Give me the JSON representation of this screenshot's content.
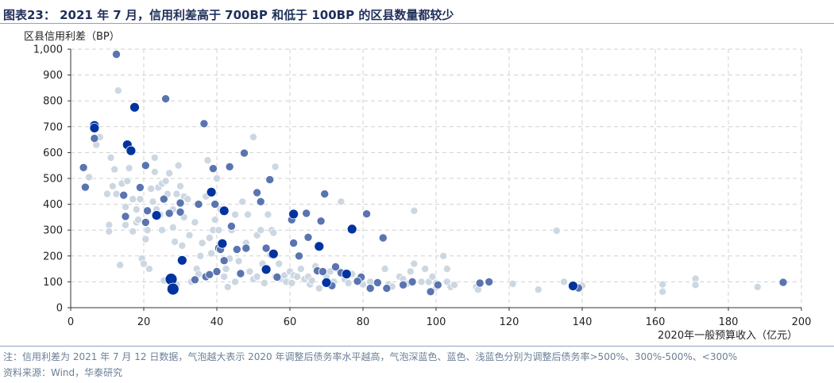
{
  "header": {
    "title": "图表23： 2021 年 7 月，信用利差高于 700BP 和低于 100BP 的区县数量都较少"
  },
  "footer": {
    "note": "注：信用利差为 2021 年 7 月 12 日数据，气泡越大表示 2020 年调整后债务率水平越高，气泡深蓝色、蓝色、浅蓝色分别为调整后债务率>500%、300%-500%、<300%",
    "source": "资料来源：Wind，华泰研究"
  },
  "chart_data": {
    "type": "scatter",
    "title": "",
    "xlabel": "2020年一般预算收入（亿元）",
    "ylabel": "区县信用利差（BP）",
    "xlim": [
      0,
      200
    ],
    "ylim": [
      0,
      1000
    ],
    "x_ticks": [
      "0",
      "20",
      "40",
      "60",
      "80",
      "100",
      "120",
      "140",
      "160",
      "180",
      "200"
    ],
    "y_ticks": [
      "0",
      "100",
      "200",
      "300",
      "400",
      "500",
      "600",
      "700",
      "800",
      "900",
      "1,000"
    ],
    "grid": "dashed",
    "colors": {
      "dark": "#0033a0",
      "medium": "#5a74b0",
      "light": "#c9d5e0"
    },
    "series": [
      {
        "category": "dark",
        "points": [
          [
            6.5,
            705
          ],
          [
            6.5,
            695
          ],
          [
            15.5,
            630
          ],
          [
            16.5,
            607
          ],
          [
            17.5,
            775
          ],
          [
            23.5,
            357
          ],
          [
            27.5,
            110
          ],
          [
            28,
            72
          ],
          [
            30.5,
            183
          ],
          [
            38.5,
            447
          ],
          [
            41.5,
            248
          ],
          [
            42,
            375
          ],
          [
            53.5,
            148
          ],
          [
            55.5,
            208
          ],
          [
            61,
            362
          ],
          [
            68,
            237
          ],
          [
            70,
            97
          ],
          [
            75.5,
            130
          ],
          [
            77,
            304
          ],
          [
            137.5,
            84
          ]
        ]
      },
      {
        "category": "medium",
        "points": [
          [
            12.5,
            980
          ],
          [
            3.5,
            542
          ],
          [
            4,
            466
          ],
          [
            6.5,
            655
          ],
          [
            14.5,
            435
          ],
          [
            15,
            353
          ],
          [
            19,
            465
          ],
          [
            20.5,
            330
          ],
          [
            20.5,
            550
          ],
          [
            21,
            375
          ],
          [
            26,
            808
          ],
          [
            27,
            365
          ],
          [
            30,
            405
          ],
          [
            30,
            370
          ],
          [
            34,
            108
          ],
          [
            35,
            400
          ],
          [
            36.5,
            712
          ],
          [
            37,
            120
          ],
          [
            38,
            128
          ],
          [
            39,
            538
          ],
          [
            39.5,
            400
          ],
          [
            40,
            140
          ],
          [
            40.5,
            230
          ],
          [
            41,
            225
          ],
          [
            42,
            182
          ],
          [
            43.5,
            545
          ],
          [
            44,
            315
          ],
          [
            45.5,
            225
          ],
          [
            46.5,
            132
          ],
          [
            47.5,
            598
          ],
          [
            48,
            230
          ],
          [
            51,
            445
          ],
          [
            52,
            410
          ],
          [
            53.5,
            230
          ],
          [
            54.5,
            495
          ],
          [
            55,
            205
          ],
          [
            56.5,
            118
          ],
          [
            60.5,
            340
          ],
          [
            61,
            250
          ],
          [
            62.5,
            200
          ],
          [
            64.5,
            365
          ],
          [
            65,
            272
          ],
          [
            67.5,
            143
          ],
          [
            68.5,
            335
          ],
          [
            69,
            140
          ],
          [
            69.5,
            440
          ],
          [
            71.5,
            85
          ],
          [
            72.5,
            158
          ],
          [
            74,
            135
          ],
          [
            79,
            108
          ],
          [
            79.5,
            118
          ],
          [
            81,
            363
          ],
          [
            82,
            75
          ],
          [
            85.5,
            270
          ],
          [
            86.5,
            75
          ],
          [
            91,
            88
          ],
          [
            93.5,
            100
          ],
          [
            98.5,
            62
          ],
          [
            100.5,
            88
          ],
          [
            112,
            95
          ],
          [
            114.5,
            100
          ],
          [
            139,
            76
          ],
          [
            195,
            98
          ],
          [
            84,
            97
          ],
          [
            78.5,
            102
          ],
          [
            25.5,
            420
          ]
        ]
      },
      {
        "category": "light",
        "points": [
          [
            5,
            505
          ],
          [
            7,
            630
          ],
          [
            8,
            660
          ],
          [
            10,
            440
          ],
          [
            10.5,
            320
          ],
          [
            10.5,
            295
          ],
          [
            11,
            580
          ],
          [
            11.5,
            470
          ],
          [
            12,
            535
          ],
          [
            12.5,
            440
          ],
          [
            13,
            840
          ],
          [
            13.5,
            165
          ],
          [
            14,
            480
          ],
          [
            14.5,
            430
          ],
          [
            15,
            390
          ],
          [
            15,
            320
          ],
          [
            15.5,
            490
          ],
          [
            16,
            540
          ],
          [
            17,
            295
          ],
          [
            17,
            420
          ],
          [
            18,
            380
          ],
          [
            18,
            330
          ],
          [
            18.5,
            340
          ],
          [
            19,
            420
          ],
          [
            19.5,
            190
          ],
          [
            20,
            170
          ],
          [
            20.5,
            265
          ],
          [
            21,
            300
          ],
          [
            21.5,
            150
          ],
          [
            22,
            460
          ],
          [
            22.5,
            410
          ],
          [
            23,
            525
          ],
          [
            23,
            580
          ],
          [
            23.5,
            380
          ],
          [
            24,
            465
          ],
          [
            24.5,
            360
          ],
          [
            25,
            480
          ],
          [
            25,
            300
          ],
          [
            25.5,
            105
          ],
          [
            26,
            490
          ],
          [
            26.5,
            440
          ],
          [
            27,
            520
          ],
          [
            28,
            380
          ],
          [
            28,
            310
          ],
          [
            28.5,
            255
          ],
          [
            29,
            440
          ],
          [
            29,
            90
          ],
          [
            29.5,
            550
          ],
          [
            30,
            470
          ],
          [
            30.5,
            240
          ],
          [
            31,
            430
          ],
          [
            31,
            350
          ],
          [
            32,
            420
          ],
          [
            32.5,
            280
          ],
          [
            33,
            100
          ],
          [
            34,
            330
          ],
          [
            34.5,
            150
          ],
          [
            35,
            130
          ],
          [
            35.5,
            200
          ],
          [
            36,
            250
          ],
          [
            37,
            430
          ],
          [
            37.5,
            570
          ],
          [
            38,
            270
          ],
          [
            38.5,
            210
          ],
          [
            39,
            300
          ],
          [
            39.5,
            340
          ],
          [
            40,
            500
          ],
          [
            40.5,
            300
          ],
          [
            41,
            380
          ],
          [
            42,
            120
          ],
          [
            42.5,
            150
          ],
          [
            43,
            80
          ],
          [
            43.5,
            190
          ],
          [
            44,
            300
          ],
          [
            45,
            100
          ],
          [
            45,
            360
          ],
          [
            46,
            180
          ],
          [
            47,
            410
          ],
          [
            48,
            250
          ],
          [
            48.5,
            360
          ],
          [
            49,
            140
          ],
          [
            50,
            110
          ],
          [
            50,
            660
          ],
          [
            51,
            120
          ],
          [
            51,
            280
          ],
          [
            52,
            300
          ],
          [
            52.5,
            170
          ],
          [
            53,
            95
          ],
          [
            54,
            360
          ],
          [
            55,
            300
          ],
          [
            55.5,
            290
          ],
          [
            56,
            545
          ],
          [
            56,
            120
          ],
          [
            57,
            170
          ],
          [
            58,
            110
          ],
          [
            58.5,
            125
          ],
          [
            59,
            100
          ],
          [
            60,
            140
          ],
          [
            60.5,
            95
          ],
          [
            61,
            125
          ],
          [
            62,
            120
          ],
          [
            63,
            150
          ],
          [
            64,
            110
          ],
          [
            65,
            120
          ],
          [
            65.5,
            90
          ],
          [
            66,
            105
          ],
          [
            67,
            160
          ],
          [
            68,
            75
          ],
          [
            70,
            120
          ],
          [
            71,
            140
          ],
          [
            72,
            100
          ],
          [
            73,
            150
          ],
          [
            74,
            410
          ],
          [
            74.5,
            130
          ],
          [
            75,
            110
          ],
          [
            76,
            95
          ],
          [
            77,
            130
          ],
          [
            80,
            90
          ],
          [
            82,
            100
          ],
          [
            84,
            100
          ],
          [
            86,
            150
          ],
          [
            87,
            90
          ],
          [
            88,
            82
          ],
          [
            90,
            120
          ],
          [
            91,
            110
          ],
          [
            92,
            92
          ],
          [
            93,
            140
          ],
          [
            94,
            170
          ],
          [
            94,
            375
          ],
          [
            96,
            100
          ],
          [
            97,
            150
          ],
          [
            98,
            100
          ],
          [
            99,
            120
          ],
          [
            100,
            78
          ],
          [
            102,
            200
          ],
          [
            103,
            100
          ],
          [
            104,
            80
          ],
          [
            105,
            88
          ],
          [
            111,
            80
          ],
          [
            111.5,
            70
          ],
          [
            121,
            92
          ],
          [
            128,
            70
          ],
          [
            133,
            298
          ],
          [
            135,
            100
          ],
          [
            140,
            85
          ],
          [
            162,
            90
          ],
          [
            162,
            62
          ],
          [
            171,
            112
          ],
          [
            171,
            88
          ],
          [
            188,
            80
          ],
          [
            103,
            150
          ],
          [
            100,
            95
          ]
        ]
      }
    ]
  }
}
